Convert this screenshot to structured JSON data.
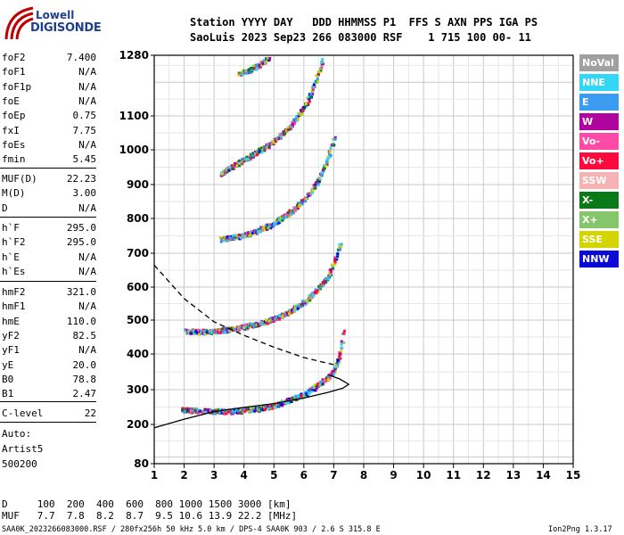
{
  "logo": {
    "line1": "Lowell",
    "line2": "DIGISONDE"
  },
  "header": {
    "line1": "Station YYYY DAY   DDD HHMMSS P1  FFS S AXN PPS IGA PS",
    "line2": "SaoLuis 2023 Sep23 266 083000 RSF    1 715 100 00- 11"
  },
  "params_group1": [
    {
      "key": "foF2",
      "value": "7.400"
    },
    {
      "key": "foF1",
      "value": "N/A"
    },
    {
      "key": "foF1p",
      "value": "N/A"
    },
    {
      "key": "foE",
      "value": "N/A"
    },
    {
      "key": "foEp",
      "value": "0.75"
    },
    {
      "key": "fxI",
      "value": "7.75"
    },
    {
      "key": "foEs",
      "value": "N/A"
    },
    {
      "key": "fmin",
      "value": "5.45"
    }
  ],
  "params_group2": [
    {
      "key": "MUF(D)",
      "value": "22.23"
    },
    {
      "key": "M(D)",
      "value": "3.00"
    },
    {
      "key": "D",
      "value": "N/A"
    }
  ],
  "params_group3": [
    {
      "key": "h`F",
      "value": "295.0"
    },
    {
      "key": "h`F2",
      "value": "295.0"
    },
    {
      "key": "h`E",
      "value": "N/A"
    },
    {
      "key": "h`Es",
      "value": "N/A"
    }
  ],
  "params_group4": [
    {
      "key": "hmF2",
      "value": "321.0"
    },
    {
      "key": "hmF1",
      "value": "N/A"
    },
    {
      "key": "hmE",
      "value": "110.0"
    },
    {
      "key": "yF2",
      "value": "82.5"
    },
    {
      "key": "yF1",
      "value": "N/A"
    },
    {
      "key": "yE",
      "value": "20.0"
    },
    {
      "key": "B0",
      "value": "78.8"
    },
    {
      "key": "B1",
      "value": "2.47"
    }
  ],
  "clevel": {
    "key": "C-level",
    "value": "22"
  },
  "auto": {
    "line1": "Auto:",
    "line2": "Artist5",
    "line3": "500200"
  },
  "legend": [
    {
      "label": "NoVal",
      "color": "#a0a0a0"
    },
    {
      "label": "NNE",
      "color": "#33d7f5"
    },
    {
      "label": "E",
      "color": "#3c9cf2"
    },
    {
      "label": "W",
      "color": "#b0049e"
    },
    {
      "label": "Vo-",
      "color": "#ff4aa8"
    },
    {
      "label": "Vo+",
      "color": "#ff0a3c"
    },
    {
      "label": "SSW",
      "color": "#f7b3b3"
    },
    {
      "label": "X-",
      "color": "#0a7a18"
    },
    {
      "label": "X+",
      "color": "#86c66a"
    },
    {
      "label": "SSE",
      "color": "#d4d400"
    },
    {
      "label": "NNW",
      "color": "#0a0ad6"
    }
  ],
  "footer": {
    "d_line": "D     100  200  400  600  800 1000 1500 3000 [km]",
    "muf_line": "MUF   7.7  7.8  8.2  8.7  9.5 10.6 13.9 22.2 [MHz]",
    "file_line": "SAA0K_2023266083000.RSF / 280fx256h 50 kHz 5.0 km / DPS-4 SAA0K 903 / 2.6 S 315.8 E",
    "version": "Ion2Png 1.3.17"
  },
  "chart_data": {
    "type": "scatter",
    "title": "",
    "xlabel": "",
    "ylabel": "",
    "xlim": [
      1,
      15
    ],
    "ylim": [
      80,
      1280
    ],
    "x_ticks": [
      1,
      2,
      3,
      4,
      5,
      6,
      7,
      8,
      9,
      10,
      11,
      12,
      13,
      14,
      15
    ],
    "y_ticks": [
      80,
      200,
      300,
      400,
      500,
      600,
      700,
      800,
      900,
      1000,
      1100,
      1280
    ],
    "grid": true,
    "traces": [
      {
        "name": "F2 trace",
        "points": [
          [
            1.9,
            245
          ],
          [
            2.5,
            241
          ],
          [
            3.0,
            240
          ],
          [
            3.5,
            240
          ],
          [
            4.0,
            243
          ],
          [
            4.5,
            248
          ],
          [
            5.0,
            258
          ],
          [
            5.5,
            272
          ],
          [
            6.0,
            290
          ],
          [
            6.5,
            318
          ],
          [
            6.8,
            338
          ],
          [
            7.0,
            360
          ],
          [
            7.15,
            390
          ],
          [
            7.25,
            430
          ],
          [
            7.3,
            480
          ]
        ]
      },
      {
        "name": "2nd hop",
        "points": [
          [
            2.0,
            470
          ],
          [
            2.5,
            468
          ],
          [
            3.0,
            470
          ],
          [
            3.5,
            475
          ],
          [
            4.0,
            483
          ],
          [
            4.5,
            493
          ],
          [
            5.0,
            508
          ],
          [
            5.5,
            528
          ],
          [
            6.0,
            558
          ],
          [
            6.4,
            592
          ],
          [
            6.8,
            640
          ],
          [
            7.0,
            680
          ],
          [
            7.2,
            730
          ]
        ]
      },
      {
        "name": "3rd hop",
        "points": [
          [
            3.2,
            742
          ],
          [
            3.6,
            748
          ],
          [
            4.0,
            755
          ],
          [
            4.5,
            770
          ],
          [
            5.0,
            790
          ],
          [
            5.5,
            820
          ],
          [
            6.0,
            860
          ],
          [
            6.4,
            905
          ],
          [
            6.8,
            980
          ],
          [
            7.0,
            1040
          ]
        ]
      },
      {
        "name": "4th hop",
        "points": [
          [
            3.2,
            935
          ],
          [
            3.6,
            955
          ],
          [
            4.0,
            975
          ],
          [
            4.5,
            1000
          ],
          [
            5.0,
            1030
          ],
          [
            5.5,
            1070
          ],
          [
            6.0,
            1130
          ],
          [
            6.3,
            1190
          ],
          [
            6.6,
            1270
          ]
        ]
      },
      {
        "name": "5th hop",
        "points": [
          [
            3.8,
            1225
          ],
          [
            4.2,
            1240
          ],
          [
            4.5,
            1255
          ],
          [
            4.8,
            1275
          ]
        ]
      }
    ],
    "fitted_curves": [
      {
        "name": "profile-solid",
        "points": [
          [
            1,
            190
          ],
          [
            2,
            215
          ],
          [
            3,
            237
          ],
          [
            4,
            249
          ],
          [
            5,
            260
          ],
          [
            6,
            276
          ],
          [
            6.8,
            292
          ],
          [
            7.3,
            304
          ],
          [
            7.5,
            315
          ],
          [
            7.2,
            330
          ],
          [
            6.8,
            342
          ]
        ]
      },
      {
        "name": "profile-dashed",
        "points": [
          [
            1,
            665
          ],
          [
            2,
            565
          ],
          [
            3,
            495
          ],
          [
            4,
            455
          ],
          [
            5,
            420
          ],
          [
            6,
            390
          ],
          [
            7,
            370
          ]
        ]
      }
    ]
  }
}
